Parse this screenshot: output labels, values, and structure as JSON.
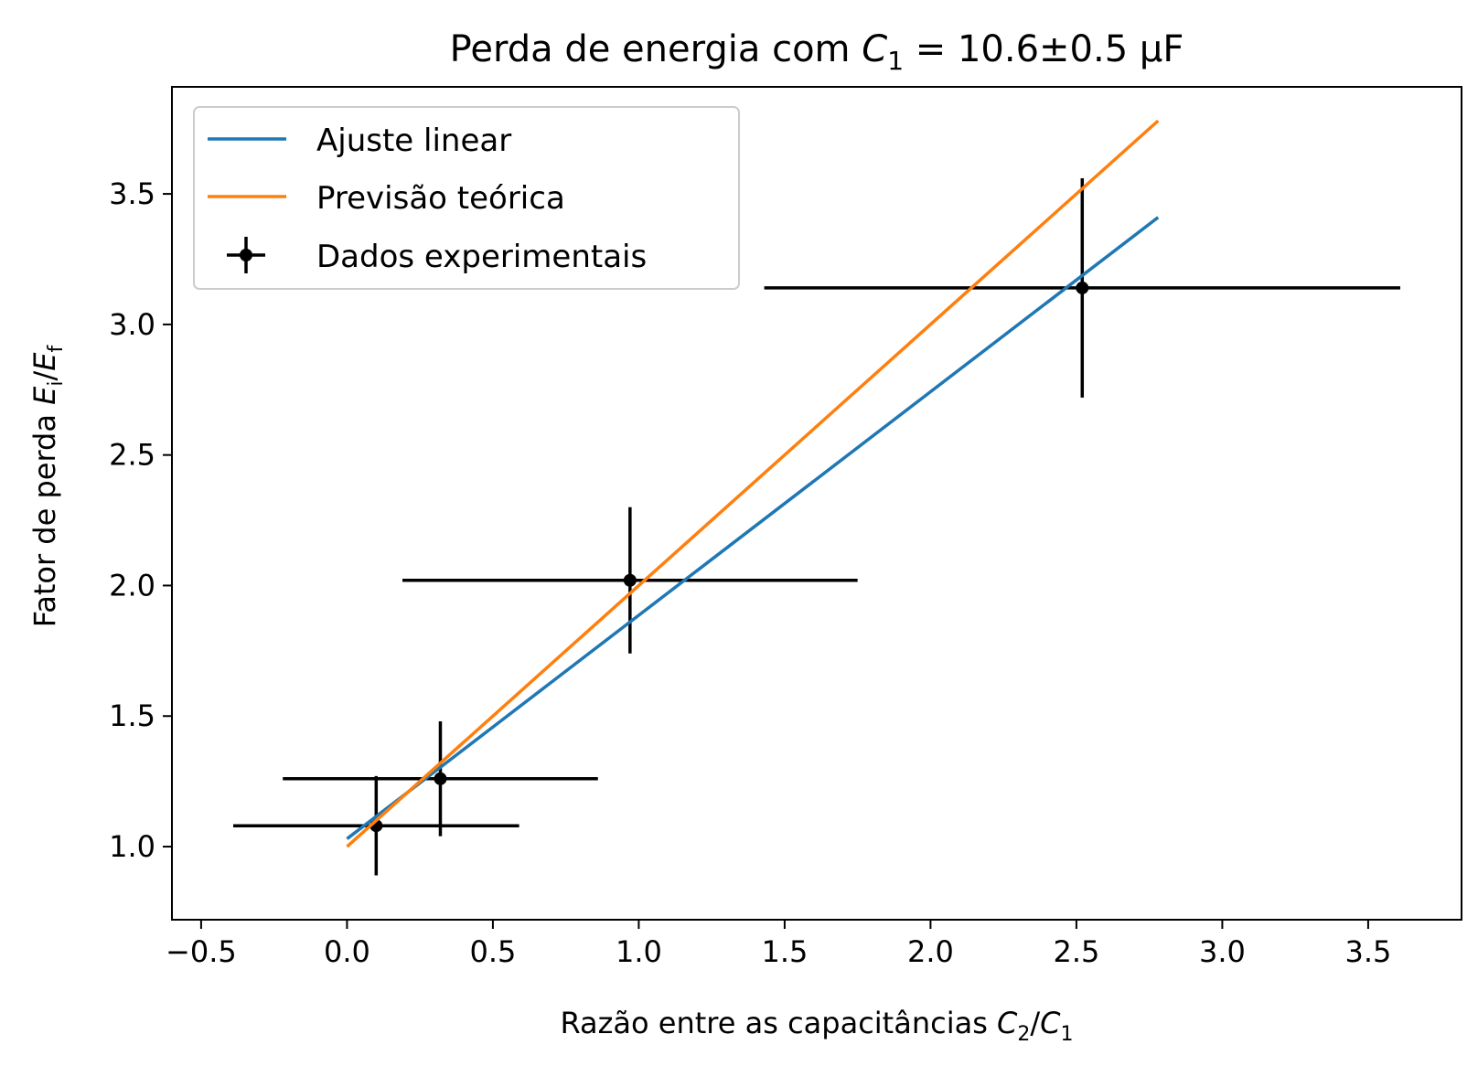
{
  "chart_data": {
    "type": "scatter",
    "title": {
      "prefix": "Perda de energia com ",
      "symbol": "C",
      "symbol_sub": "1",
      "suffix": " = 10.6±0.5 µF"
    },
    "xlabel": {
      "prefix": "Razão entre as capacitâncias ",
      "num": "C",
      "num_sub": "2",
      "sep": "/",
      "den": "C",
      "den_sub": "1"
    },
    "ylabel": {
      "prefix": "Fator de perda ",
      "num": "E",
      "num_sub": "i",
      "sep": "/",
      "den": "E",
      "den_sub": "f"
    },
    "xlim": [
      -0.6,
      3.82
    ],
    "ylim": [
      0.72,
      3.91
    ],
    "xticks": [
      -0.5,
      0.0,
      0.5,
      1.0,
      1.5,
      2.0,
      2.5,
      3.0,
      3.5
    ],
    "xtick_labels": [
      "−0.5",
      "0.0",
      "0.5",
      "1.0",
      "1.5",
      "2.0",
      "2.5",
      "3.0",
      "3.5"
    ],
    "yticks": [
      1.0,
      1.5,
      2.0,
      2.5,
      3.0,
      3.5
    ],
    "ytick_labels": [
      "1.0",
      "1.5",
      "2.0",
      "2.5",
      "3.0",
      "3.5"
    ],
    "grid": false,
    "legend_position": "top-left",
    "series": [
      {
        "name": "Ajuste linear",
        "kind": "line",
        "color": "#1f77b4",
        "x": [
          0.0,
          2.78
        ],
        "y": [
          1.03,
          3.41
        ]
      },
      {
        "name": "Previsão teórica",
        "kind": "line",
        "color": "#ff7f0e",
        "x": [
          0.0,
          2.78
        ],
        "y": [
          1.0,
          3.78
        ]
      },
      {
        "name": "Dados experimentais",
        "kind": "errorbar",
        "color": "#000000",
        "points": [
          {
            "x": 0.1,
            "y": 1.08,
            "xerr": 0.49,
            "yerr": 0.19
          },
          {
            "x": 0.32,
            "y": 1.26,
            "xerr": 0.54,
            "yerr": 0.22
          },
          {
            "x": 0.97,
            "y": 2.02,
            "xerr": 0.78,
            "yerr": 0.28
          },
          {
            "x": 2.52,
            "y": 3.14,
            "xerr": 1.09,
            "yerr": 0.42
          }
        ]
      }
    ]
  }
}
